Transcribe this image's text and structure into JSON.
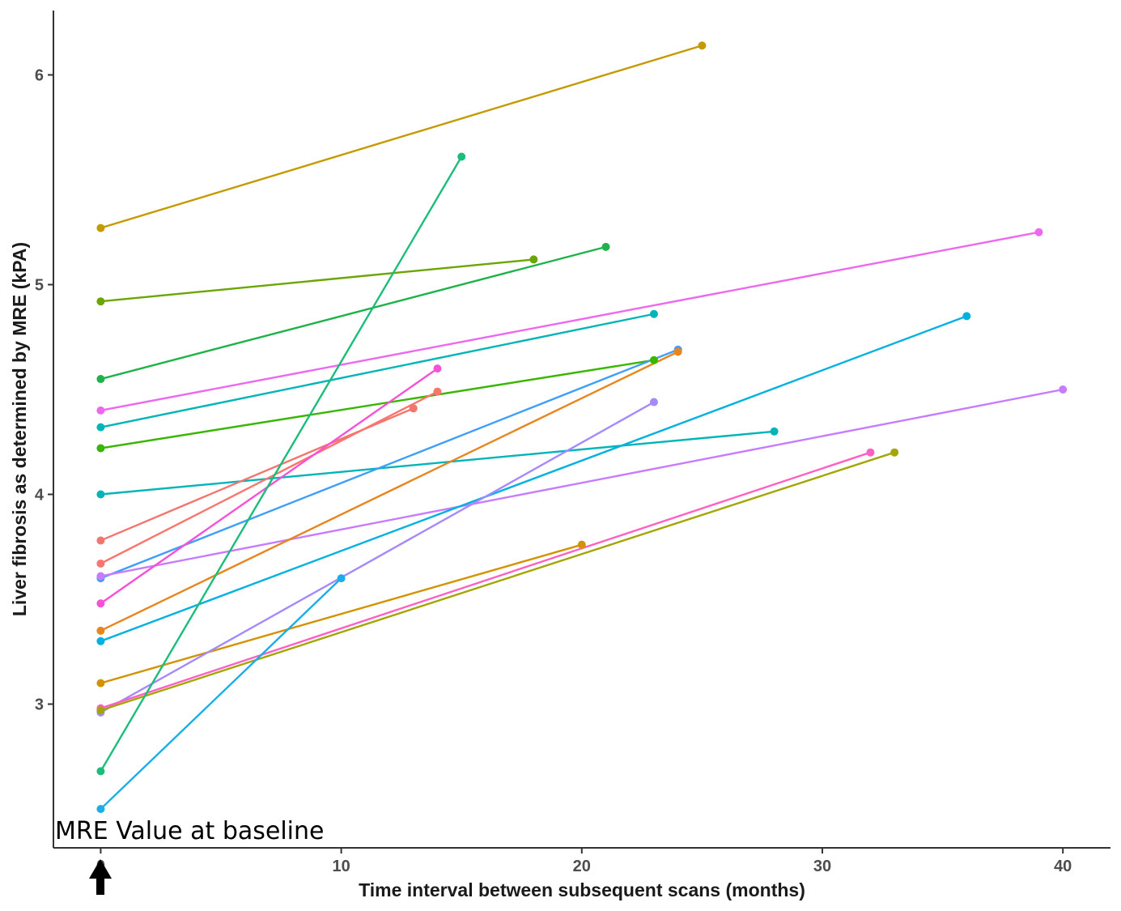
{
  "chart_data": {
    "type": "line",
    "title": "",
    "xlabel": "Time interval between subsequent scans (months)",
    "ylabel": "Liver fibrosis as determined by MRE (kPA)",
    "xlim": [
      -2,
      42
    ],
    "ylim": [
      2.37,
      6.32
    ],
    "x_ticks": [
      0,
      10,
      20,
      30,
      40
    ],
    "y_ticks": [
      3,
      4,
      5,
      6
    ],
    "grid": false,
    "legend": "none",
    "annotation": "MRE Value at baseline",
    "series": [
      {
        "color": "#c49a00",
        "x": [
          0,
          25
        ],
        "y": [
          5.27,
          6.14
        ]
      },
      {
        "color": "#6aa500",
        "x": [
          0,
          18
        ],
        "y": [
          4.92,
          5.12
        ]
      },
      {
        "color": "#1fb24a",
        "x": [
          0,
          21
        ],
        "y": [
          4.55,
          5.18
        ]
      },
      {
        "color": "#ec69ef",
        "x": [
          0,
          39
        ],
        "y": [
          4.4,
          5.25
        ]
      },
      {
        "color": "#00b4b8",
        "x": [
          0,
          23
        ],
        "y": [
          4.32,
          4.86
        ]
      },
      {
        "color": "#39b600",
        "x": [
          0,
          23
        ],
        "y": [
          4.22,
          4.64
        ]
      },
      {
        "color": "#00b4b8",
        "x": [
          0,
          28
        ],
        "y": [
          4.0,
          4.3
        ]
      },
      {
        "color": "#f2766e",
        "x": [
          0,
          13
        ],
        "y": [
          3.78,
          4.41
        ]
      },
      {
        "color": "#f8766d",
        "x": [
          0,
          14
        ],
        "y": [
          3.67,
          4.49
        ]
      },
      {
        "color": "#3f9ef8",
        "x": [
          0,
          24
        ],
        "y": [
          3.6,
          4.69
        ]
      },
      {
        "color": "#c77cff",
        "x": [
          0,
          40
        ],
        "y": [
          3.61,
          4.5
        ]
      },
      {
        "color": "#f552d8",
        "x": [
          0,
          14
        ],
        "y": [
          3.48,
          4.6
        ]
      },
      {
        "color": "#e7851e",
        "x": [
          0,
          24
        ],
        "y": [
          3.35,
          4.68
        ]
      },
      {
        "color": "#00b0e0",
        "x": [
          0,
          36
        ],
        "y": [
          3.3,
          4.85
        ]
      },
      {
        "color": "#d39200",
        "x": [
          0,
          20
        ],
        "y": [
          3.1,
          3.76
        ]
      },
      {
        "color": "#a58afe",
        "x": [
          0,
          23
        ],
        "y": [
          2.96,
          4.44
        ]
      },
      {
        "color": "#ff61c3",
        "x": [
          0,
          32
        ],
        "y": [
          2.98,
          4.2
        ]
      },
      {
        "color": "#a3a500",
        "x": [
          0,
          33
        ],
        "y": [
          2.97,
          4.2
        ]
      },
      {
        "color": "#1cbd7b",
        "x": [
          0,
          15
        ],
        "y": [
          2.68,
          5.61
        ]
      },
      {
        "color": "#17aeea",
        "x": [
          0,
          10
        ],
        "y": [
          2.5,
          3.6
        ]
      }
    ]
  }
}
